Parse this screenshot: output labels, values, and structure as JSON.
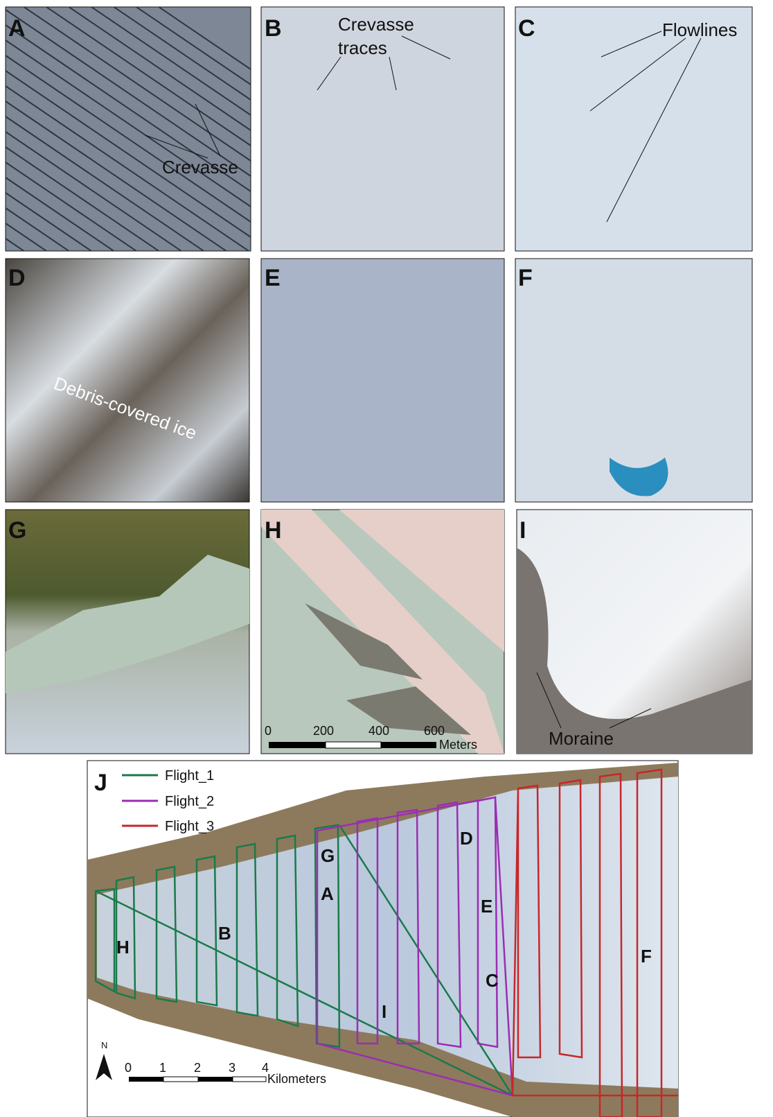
{
  "panels": [
    {
      "letter": "A",
      "annotations": [
        "Crevasse"
      ]
    },
    {
      "letter": "B",
      "annotations": [
        "Crevasse",
        "traces"
      ]
    },
    {
      "letter": "C",
      "annotations": [
        "Flowlines"
      ]
    },
    {
      "letter": "D",
      "annotations": [
        "Debris-covered ice"
      ]
    },
    {
      "letter": "E",
      "annotations": []
    },
    {
      "letter": "F",
      "annotations": []
    },
    {
      "letter": "G",
      "annotations": []
    },
    {
      "letter": "H",
      "annotations": []
    },
    {
      "letter": "I",
      "annotations": [
        "Moraine"
      ]
    }
  ],
  "scale_bar": {
    "ticks": [
      "0",
      "200",
      "400",
      "600"
    ],
    "unit": "Meters"
  },
  "map": {
    "letter": "J",
    "legend": [
      "Flight_1",
      "Flight_2",
      "Flight_3"
    ],
    "labels": [
      "G",
      "A",
      "B",
      "H",
      "D",
      "E",
      "C",
      "I",
      "F"
    ],
    "north": "N",
    "scale_ticks": [
      "0",
      "1",
      "2",
      "3",
      "4"
    ],
    "scale_unit": "Kilometers"
  }
}
